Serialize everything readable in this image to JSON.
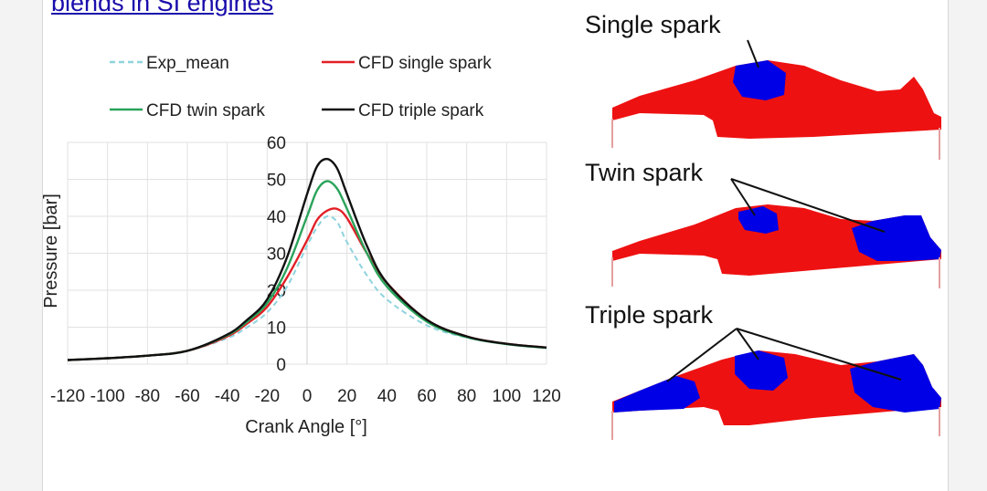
{
  "page": {
    "title_link": "blends in SI engines"
  },
  "chart_data": {
    "type": "line",
    "xlabel": "Crank Angle [°]",
    "ylabel": "Pressure [bar]",
    "xlim": [
      -120,
      120
    ],
    "ylim": [
      0,
      60
    ],
    "xticks": [
      -120,
      -100,
      -80,
      -60,
      -40,
      -20,
      0,
      20,
      40,
      60,
      80,
      100,
      120
    ],
    "yticks": [
      0,
      10,
      20,
      30,
      40,
      50,
      60
    ],
    "grid": true,
    "legend": "top, two columns",
    "series": [
      {
        "name": "Exp_mean",
        "color": "#8fd3de",
        "dashed": true,
        "x": [
          -120,
          -100,
          -80,
          -60,
          -40,
          -30,
          -20,
          -10,
          0,
          5,
          10,
          15,
          20,
          30,
          40,
          60,
          80,
          100,
          120
        ],
        "y": [
          1.1,
          1.6,
          2.3,
          3.6,
          7.0,
          10.0,
          14.0,
          21.0,
          32.0,
          37.0,
          40.0,
          38.5,
          33.0,
          24.0,
          17.5,
          10.5,
          7.2,
          5.5,
          4.5
        ]
      },
      {
        "name": "CFD single spark",
        "color": "#e21f26",
        "x": [
          -120,
          -100,
          -80,
          -60,
          -40,
          -30,
          -20,
          -10,
          0,
          5,
          10,
          15,
          20,
          30,
          40,
          60,
          80,
          100,
          120
        ],
        "y": [
          1.1,
          1.6,
          2.3,
          3.6,
          7.5,
          11.0,
          15.5,
          23.5,
          33.5,
          39.0,
          41.5,
          42.0,
          39.5,
          30.0,
          22.0,
          12.0,
          7.5,
          5.5,
          4.5
        ]
      },
      {
        "name": "CFD twin spark",
        "color": "#2aa35a",
        "x": [
          -120,
          -100,
          -80,
          -60,
          -40,
          -30,
          -20,
          -10,
          0,
          5,
          10,
          15,
          20,
          30,
          40,
          60,
          80,
          100,
          120
        ],
        "y": [
          1.1,
          1.6,
          2.3,
          3.6,
          7.8,
          11.5,
          16.5,
          26.0,
          40.0,
          47.0,
          49.5,
          47.5,
          42.0,
          30.0,
          21.0,
          11.5,
          7.3,
          5.4,
          4.4
        ]
      },
      {
        "name": "CFD triple spark",
        "color": "#111111",
        "x": [
          -120,
          -100,
          -80,
          -60,
          -40,
          -30,
          -20,
          -10,
          0,
          5,
          10,
          15,
          20,
          30,
          40,
          60,
          80,
          100,
          120
        ],
        "y": [
          1.1,
          1.6,
          2.3,
          3.6,
          8.0,
          12.0,
          17.5,
          29.0,
          46.0,
          53.5,
          55.5,
          53.0,
          46.0,
          32.0,
          22.0,
          12.0,
          7.5,
          5.5,
          4.5
        ]
      }
    ]
  },
  "panels": [
    {
      "title": "Single spark",
      "kernels": 1
    },
    {
      "title": "Twin spark",
      "kernels": 2
    },
    {
      "title": "Triple spark",
      "kernels": 3
    }
  ],
  "colors": {
    "burned": "#0000e6",
    "unburned": "#ee1111"
  }
}
